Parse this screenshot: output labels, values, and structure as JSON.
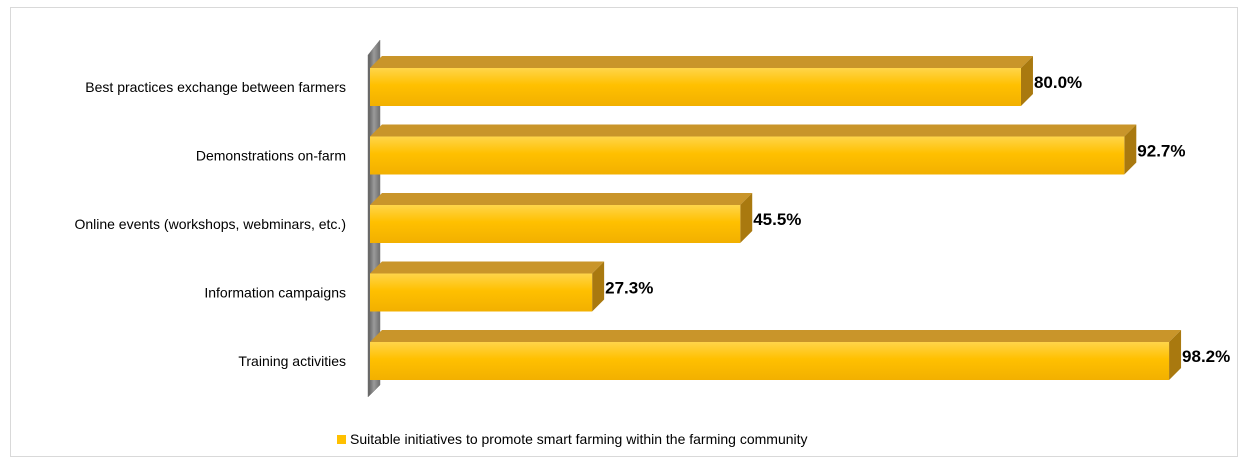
{
  "chart_data": {
    "type": "bar",
    "orientation": "horizontal",
    "style": "3d",
    "categories": [
      "Best practices exchange between farmers",
      "Demonstrations on-farm",
      "Online events (workshops, webminars, etc.)",
      "Information campaigns",
      "Training activities"
    ],
    "series": [
      {
        "name": "Suitable initiatives to promote smart farming within the farming community",
        "values": [
          80.0,
          92.7,
          45.5,
          27.3,
          98.2
        ],
        "color": "#FFC000"
      }
    ],
    "value_labels": [
      "80.0%",
      "92.7%",
      "45.5%",
      "27.3%",
      "98.2%"
    ],
    "xlim": [
      0,
      100
    ],
    "grid": false,
    "legend_position": "bottom",
    "title": "",
    "xlabel": "",
    "ylabel": ""
  },
  "colors": {
    "bar_front": "#FFC000",
    "bar_top": "#C9952A",
    "bar_side": "#A9790F",
    "wall": "#7f7f7f"
  }
}
